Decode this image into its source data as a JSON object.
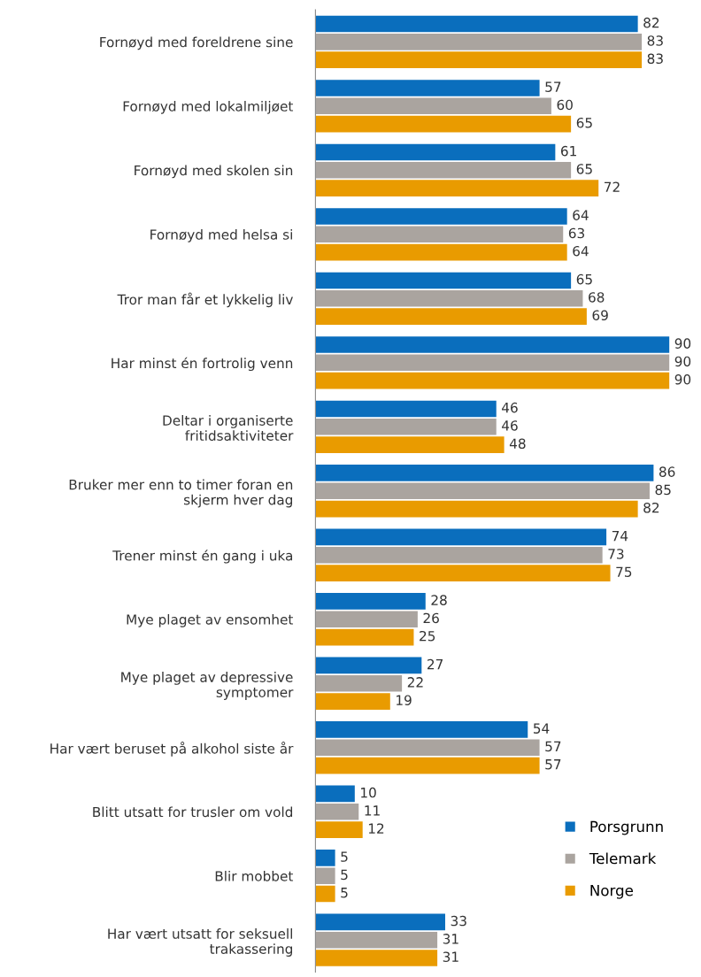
{
  "chart_data": {
    "type": "bar",
    "orientation": "horizontal",
    "categories": [
      "Fornøyd med foreldrene sine",
      "Fornøyd med lokalmiljøet",
      "Fornøyd med skolen sin",
      "Fornøyd med helsa si",
      "Tror man får et lykkelig liv",
      "Har minst én fortrolig venn",
      "Deltar i organiserte\nfritidsaktiviteter",
      "Bruker mer enn to timer foran en\nskjerm hver dag",
      "Trener minst én gang i uka",
      "Mye plaget av ensomhet",
      "Mye plaget av depressive\nsymptomer",
      "Har vært beruset på alkohol siste år",
      "Blitt utsatt for trusler om vold",
      "Blir mobbet",
      "Har vært utsatt for seksuell\ntrakassering"
    ],
    "series": [
      {
        "name": "Porsgrunn",
        "color": "#0a6ebd",
        "values": [
          82,
          57,
          61,
          64,
          65,
          90,
          46,
          86,
          74,
          28,
          27,
          54,
          10,
          5,
          33
        ]
      },
      {
        "name": "Telemark",
        "color": "#aaa49f",
        "values": [
          83,
          60,
          65,
          63,
          68,
          90,
          46,
          85,
          73,
          26,
          22,
          57,
          11,
          5,
          31
        ]
      },
      {
        "name": "Norge",
        "color": "#e99b00",
        "values": [
          83,
          65,
          72,
          64,
          69,
          90,
          48,
          82,
          75,
          25,
          19,
          57,
          12,
          5,
          31
        ]
      }
    ],
    "data_labels": true,
    "legend": "bottom right",
    "tick_labels": "y",
    "grid": false
  }
}
